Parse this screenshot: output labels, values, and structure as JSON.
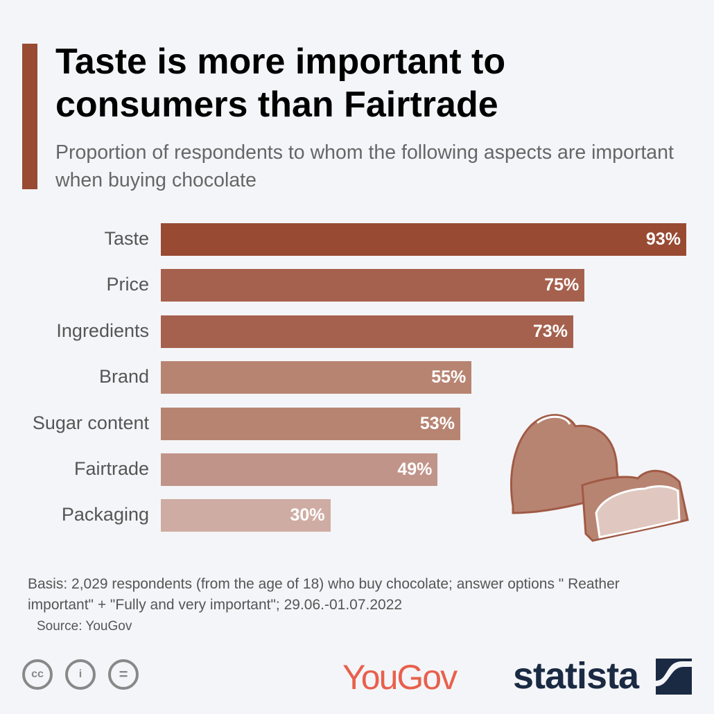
{
  "title": "Taste is more important to consumers than Fairtrade",
  "subtitle": "Proportion of respondents to whom the following aspects are important when buying chocolate",
  "chart_data": {
    "type": "bar",
    "orientation": "horizontal",
    "categories": [
      "Taste",
      "Price",
      "Ingredients",
      "Brand",
      "Sugar content",
      "Fairtrade",
      "Packaging"
    ],
    "values": [
      93,
      75,
      73,
      55,
      53,
      49,
      30
    ],
    "value_labels": [
      "93%",
      "75%",
      "73%",
      "55%",
      "53%",
      "49%",
      "30%"
    ],
    "colors": [
      "#994a33",
      "#a5614d",
      "#a5614d",
      "#b88472",
      "#b88472",
      "#c1948a",
      "#cfaca3"
    ],
    "xlim": [
      0,
      100
    ],
    "unit": "%"
  },
  "note": "Basis: 2,029 respondents (from the age of 18) who buy chocolate; answer options \" Reather important\" + \"Fully and very important\"; 29.06.-01.07.2022",
  "source": "Source: YouGov",
  "license_icons": [
    "cc",
    "i",
    "="
  ],
  "logos": {
    "yougov": "YouGov",
    "statista": "statista"
  }
}
